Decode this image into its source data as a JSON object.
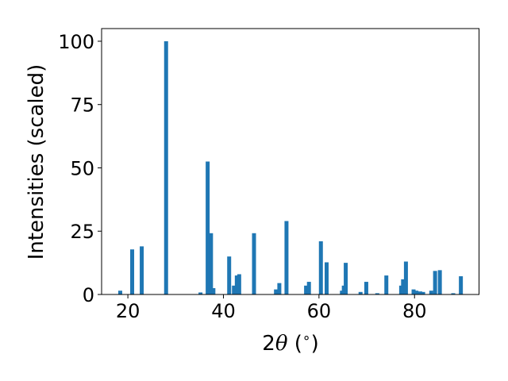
{
  "chart_data": {
    "type": "bar",
    "xlabel_parts": [
      "2",
      "θ",
      " (",
      "∘",
      ")"
    ],
    "ylabel": "Intensities (scaled)",
    "xlim": [
      14.5,
      93.5
    ],
    "ylim": [
      0,
      105
    ],
    "xticks": [
      20,
      40,
      60,
      80
    ],
    "yticks": [
      0,
      25,
      50,
      75,
      100
    ],
    "grid": false,
    "bar_color": "#1f77b4",
    "x": [
      18.4,
      20.9,
      22.9,
      28.0,
      35.2,
      36.7,
      37.4,
      37.9,
      41.2,
      42.2,
      42.8,
      43.3,
      46.4,
      51.0,
      51.7,
      53.2,
      57.3,
      57.9,
      60.4,
      61.6,
      64.8,
      65.2,
      65.6,
      68.7,
      69.9,
      72.2,
      74.1,
      77.2,
      77.6,
      78.2,
      79.8,
      80.4,
      81.2,
      81.8,
      83.5,
      84.3,
      85.3,
      88.1,
      89.7
    ],
    "values": [
      1.5,
      17.8,
      19.0,
      100,
      0.8,
      52.5,
      24.2,
      2.5,
      15.0,
      3.5,
      7.5,
      8.0,
      24.2,
      2.0,
      4.5,
      29.0,
      3.5,
      5.0,
      21.0,
      12.7,
      1.5,
      3.5,
      12.5,
      1.0,
      5.0,
      0.5,
      7.5,
      3.5,
      6.0,
      13.0,
      2.0,
      1.5,
      1.2,
      1.0,
      1.5,
      9.3,
      9.6,
      0.5,
      7.2
    ]
  }
}
